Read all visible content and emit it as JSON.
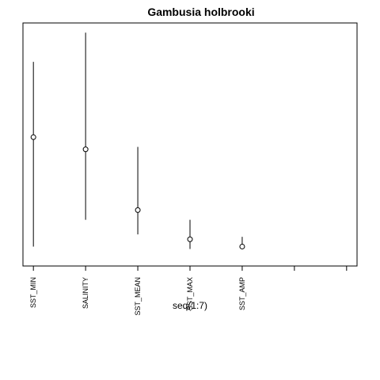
{
  "chart_data": {
    "type": "scatter",
    "title": "Gambusia holbrooki",
    "xlabel": "seq(1:7)",
    "ylabel": "",
    "xlim": [
      0.8,
      7.2
    ],
    "ylim": [
      0.0,
      1.0
    ],
    "x": [
      1,
      2,
      3,
      4,
      5,
      6,
      7
    ],
    "categories": [
      "SST_MIN",
      "SALINITY",
      "SST_MEAN",
      "SST_MAX",
      "SST_AMP",
      "",
      ""
    ],
    "points": [
      {
        "x": 1,
        "y": 0.53,
        "lower": 0.08,
        "upper": 0.84
      },
      {
        "x": 2,
        "y": 0.48,
        "lower": 0.19,
        "upper": 0.96
      },
      {
        "x": 3,
        "y": 0.23,
        "lower": 0.13,
        "upper": 0.49
      },
      {
        "x": 4,
        "y": 0.11,
        "lower": 0.07,
        "upper": 0.19
      },
      {
        "x": 5,
        "y": 0.08,
        "lower": 0.07,
        "upper": 0.12
      }
    ],
    "grid": false,
    "legend": "none",
    "color": "#000000"
  }
}
